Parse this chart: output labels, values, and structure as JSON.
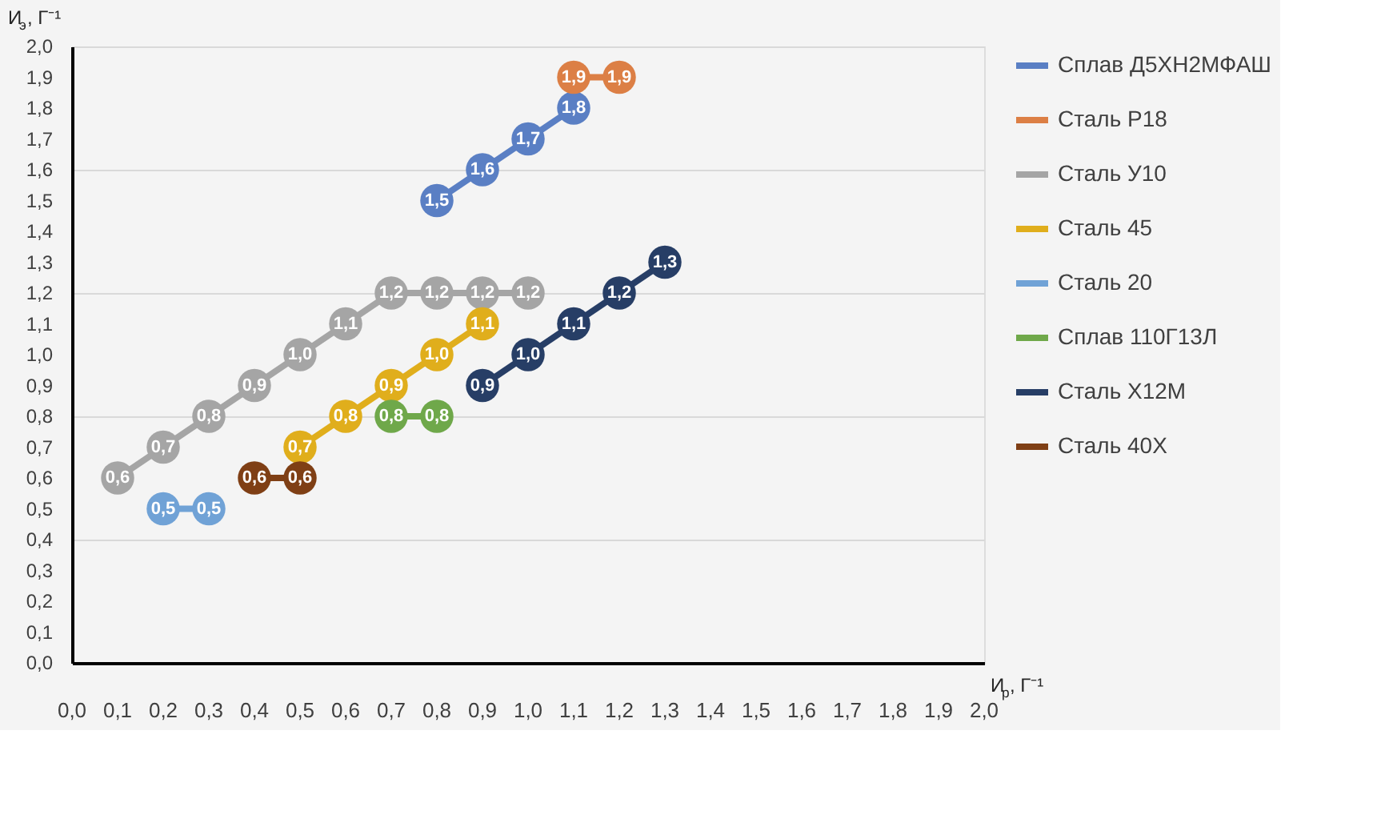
{
  "chart_data": {
    "type": "line",
    "xlabel": "И$_{р}$, Г⁻¹",
    "ylabel": "И$_{э}$, Г⁻¹",
    "xlim": [
      0,
      2
    ],
    "ylim": [
      0,
      2
    ],
    "xticks": [
      {
        "value": 0,
        "label": "0,0"
      },
      {
        "value": 0.1,
        "label": "0,1"
      },
      {
        "value": 0.2,
        "label": "0,2"
      },
      {
        "value": 0.3,
        "label": "0,3"
      },
      {
        "value": 0.4,
        "label": "0,4"
      },
      {
        "value": 0.5,
        "label": "0,5"
      },
      {
        "value": 0.6,
        "label": "0,6"
      },
      {
        "value": 0.7,
        "label": "0,7"
      },
      {
        "value": 0.8,
        "label": "0,8"
      },
      {
        "value": 0.9,
        "label": "0,9"
      },
      {
        "value": 1.0,
        "label": "1,0"
      },
      {
        "value": 1.1,
        "label": "1,1"
      },
      {
        "value": 1.2,
        "label": "1,2"
      },
      {
        "value": 1.3,
        "label": "1,3"
      },
      {
        "value": 1.4,
        "label": "1,4"
      },
      {
        "value": 1.5,
        "label": "1,5"
      },
      {
        "value": 1.6,
        "label": "1,6"
      },
      {
        "value": 1.7,
        "label": "1,7"
      },
      {
        "value": 1.8,
        "label": "1,8"
      },
      {
        "value": 1.9,
        "label": "1,9"
      },
      {
        "value": 2.0,
        "label": "2,0"
      }
    ],
    "yticks": [
      {
        "value": 0,
        "label": "0,0"
      },
      {
        "value": 0.1,
        "label": "0,1"
      },
      {
        "value": 0.2,
        "label": "0,2"
      },
      {
        "value": 0.3,
        "label": "0,3"
      },
      {
        "value": 0.4,
        "label": "0,4"
      },
      {
        "value": 0.5,
        "label": "0,5"
      },
      {
        "value": 0.6,
        "label": "0,6"
      },
      {
        "value": 0.7,
        "label": "0,7"
      },
      {
        "value": 0.8,
        "label": "0,8"
      },
      {
        "value": 0.9,
        "label": "0,9"
      },
      {
        "value": 1.0,
        "label": "1,0"
      },
      {
        "value": 1.1,
        "label": "1,1"
      },
      {
        "value": 1.2,
        "label": "1,2"
      },
      {
        "value": 1.3,
        "label": "1,3"
      },
      {
        "value": 1.4,
        "label": "1,4"
      },
      {
        "value": 1.5,
        "label": "1,5"
      },
      {
        "value": 1.6,
        "label": "1,6"
      },
      {
        "value": 1.7,
        "label": "1,7"
      },
      {
        "value": 1.8,
        "label": "1,8"
      },
      {
        "value": 1.9,
        "label": "1,9"
      },
      {
        "value": 2.0,
        "label": "2,0"
      }
    ],
    "grid": "y",
    "legend": "right",
    "marker": "circle",
    "line_style": "solid",
    "series": [
      {
        "name": "Сплав Д5ХН2МФАШ",
        "color": "#5a7fc4",
        "x": [
          0.8,
          0.9,
          1.0,
          1.1
        ],
        "values": [
          1.5,
          1.6,
          1.7,
          1.8
        ],
        "value_labels": [
          "1,5",
          "1,6",
          "1,7",
          "1,8"
        ]
      },
      {
        "name": "Сталь Р18",
        "color": "#dc7f45",
        "x": [
          1.1,
          1.2
        ],
        "values": [
          1.9,
          1.9
        ],
        "value_labels": [
          "1,9",
          "1,9"
        ]
      },
      {
        "name": "Сталь У10",
        "color": "#a5a5a5",
        "x": [
          0.1,
          0.2,
          0.3,
          0.4,
          0.5,
          0.6,
          0.7,
          0.8,
          0.9,
          1.0
        ],
        "values": [
          0.6,
          0.7,
          0.8,
          0.9,
          1.0,
          1.1,
          1.2,
          1.2,
          1.2,
          1.2
        ],
        "value_labels": [
          "0,6",
          "0,7",
          "0,8",
          "0,9",
          "1,0",
          "1,1",
          "1,2",
          "1,2",
          "1,2",
          "1,2"
        ]
      },
      {
        "name": "Сталь 45",
        "color": "#e0ae1c",
        "x": [
          0.5,
          0.6,
          0.7,
          0.8,
          0.9
        ],
        "values": [
          0.7,
          0.8,
          0.9,
          1.0,
          1.1
        ],
        "value_labels": [
          "0,7",
          "0,8",
          "0,9",
          "1,0",
          "1,1"
        ]
      },
      {
        "name": "Сталь 20",
        "color": "#70a2d6",
        "x": [
          0.2,
          0.3
        ],
        "values": [
          0.5,
          0.5
        ],
        "value_labels": [
          "0,5",
          "0,5"
        ]
      },
      {
        "name": "Сплав 110Г13Л",
        "color": "#6fa84a",
        "x": [
          0.7,
          0.8
        ],
        "values": [
          0.8,
          0.8
        ],
        "value_labels": [
          "0,8",
          "0,8"
        ]
      },
      {
        "name": "Сталь Х12М",
        "color": "#273e66",
        "x": [
          0.9,
          1.0,
          1.1,
          1.2,
          1.3
        ],
        "values": [
          0.9,
          1.0,
          1.1,
          1.2,
          1.3
        ],
        "value_labels": [
          "0,9",
          "1,0",
          "1,1",
          "1,2",
          "1,3"
        ]
      },
      {
        "name": "Сталь 40Х",
        "color": "#7f3f15",
        "x": [
          0.4,
          0.5
        ],
        "values": [
          0.6,
          0.6
        ],
        "value_labels": [
          "0,6",
          "0,6"
        ]
      }
    ]
  }
}
